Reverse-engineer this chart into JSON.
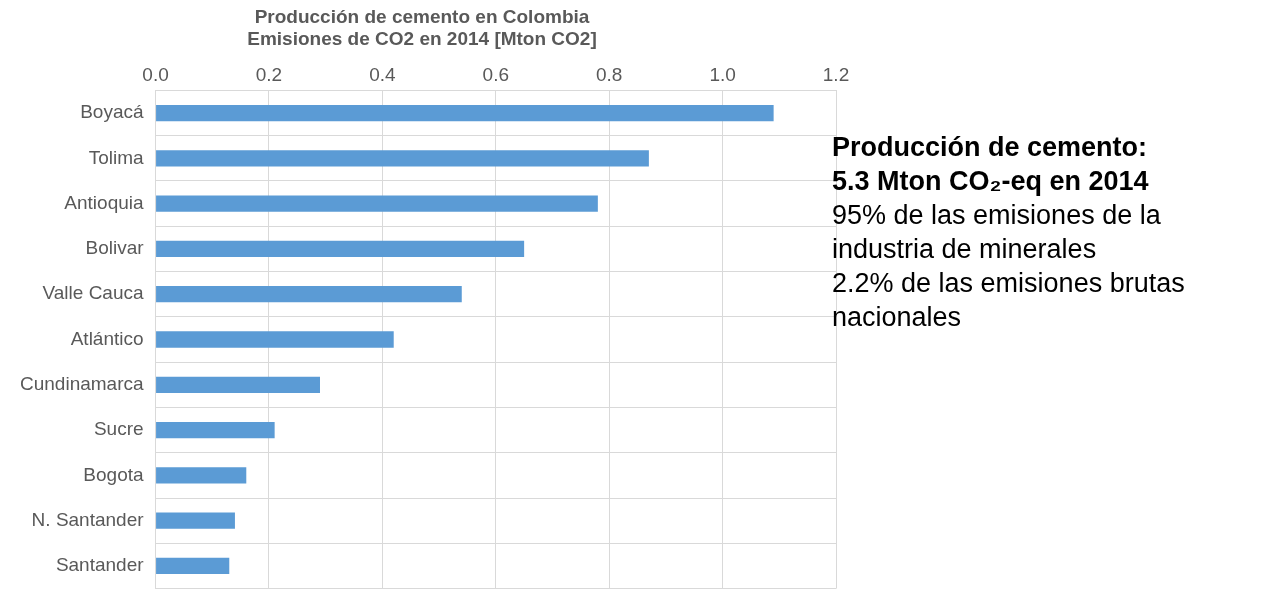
{
  "chart_data": {
    "type": "bar",
    "orientation": "horizontal",
    "title": "Producción de cemento en Colombia",
    "subtitle": "Emisiones de CO2 en 2014 [Mton CO2]",
    "categories": [
      "Boyacá",
      "Tolima",
      "Antioquia",
      "Bolivar",
      "Valle Cauca",
      "Atlántico",
      "Cundinamarca",
      "Sucre",
      "Bogota",
      "N. Santander",
      "Santander"
    ],
    "values": [
      1.09,
      0.87,
      0.78,
      0.65,
      0.54,
      0.42,
      0.29,
      0.21,
      0.16,
      0.14,
      0.13
    ],
    "color": "#5b9bd5",
    "xlim": [
      0,
      1.2
    ],
    "xticks": [
      {
        "value": 0,
        "label": "0.0"
      },
      {
        "value": 0.2,
        "label": "0.2"
      },
      {
        "value": 0.4,
        "label": "0.4"
      },
      {
        "value": 0.6,
        "label": "0.6"
      },
      {
        "value": 0.8,
        "label": "0.8"
      },
      {
        "value": 1,
        "label": "1.0"
      },
      {
        "value": 1.2,
        "label": "1.2"
      }
    ],
    "grid": true,
    "annotations": [
      "Producción de cemento:",
      "5.3 Mton CO₂-eq en 2014",
      "95% de las emisiones de la industria de minerales",
      "2.2% de las emisiones brutas nacionales"
    ]
  }
}
